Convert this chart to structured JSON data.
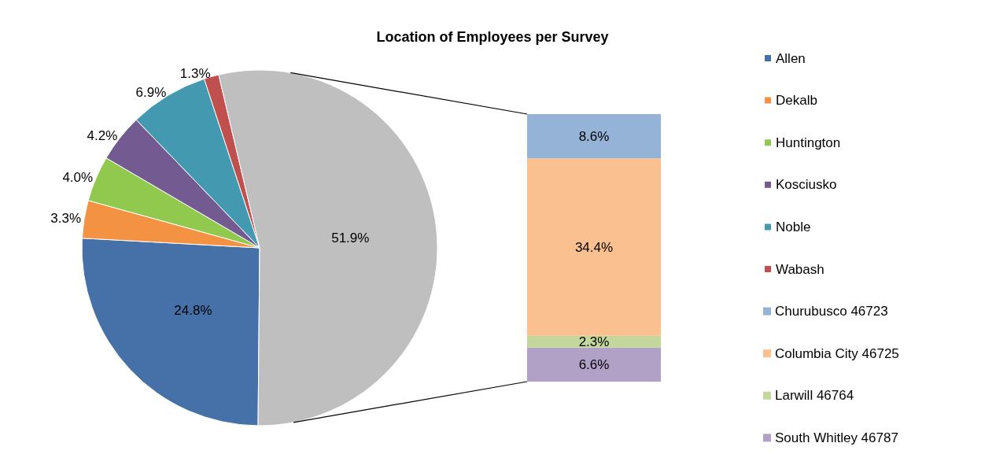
{
  "chart_data": [
    {
      "type": "pie",
      "title": "Location of Employees per Survey",
      "categories": [
        "Allen",
        "Dekalb",
        "Huntington",
        "Kosciusko",
        "Noble",
        "Wabash",
        null
      ],
      "values": [
        24.8,
        3.3,
        4.0,
        4.2,
        6.9,
        1.3,
        51.9
      ],
      "colors": [
        "#4571a8",
        "#f49244",
        "#91c94f",
        "#735a91",
        "#4399b0",
        "#c0504d",
        "#bfbfbf"
      ],
      "value_labels": [
        "24.8%",
        "3.3%",
        "4.0%",
        "4.2%",
        "6.9%",
        "1.3%",
        "51.9%"
      ],
      "legend": "right"
    },
    {
      "type": "bar",
      "stacked": true,
      "categories": [
        null
      ],
      "tick_labels": false,
      "legend": "right",
      "series": [
        {
          "name": "South Whitley 46787",
          "color": "#b2a1c7",
          "values": [
            6.6
          ],
          "value_labels": [
            "6.6%"
          ]
        },
        {
          "name": "Larwill 46764",
          "color": "#c3d69b",
          "values": [
            2.3
          ],
          "value_labels": [
            "2.3%"
          ]
        },
        {
          "name": "Columbia City 46725",
          "color": "#fac090",
          "values": [
            34.4
          ],
          "value_labels": [
            "34.4%"
          ]
        },
        {
          "name": "Churubusco 46723",
          "color": "#95b3d7",
          "values": [
            8.6
          ],
          "value_labels": [
            "8.6%"
          ]
        }
      ],
      "ylim": [
        0,
        51.9
      ]
    }
  ]
}
